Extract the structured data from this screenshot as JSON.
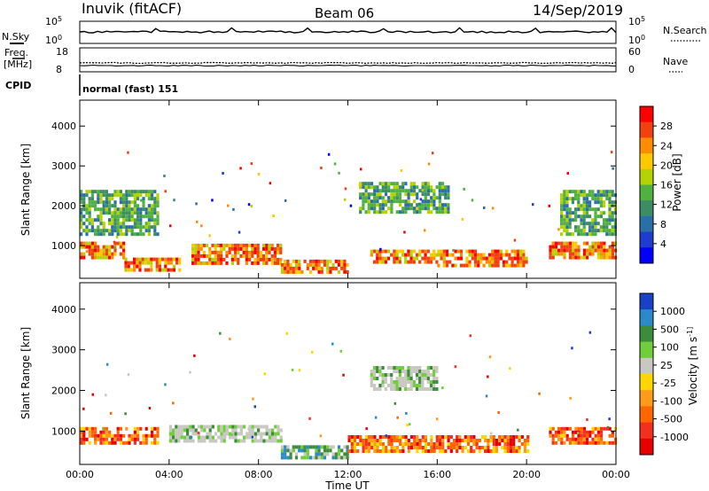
{
  "header": {
    "station": "Inuvik (fitACF)",
    "beam": "Beam 06",
    "date": "14/Sep/2019"
  },
  "strip_panels": {
    "nsky": {
      "label": "N.Sky",
      "ticks": [
        "10^5",
        "10^0"
      ],
      "right_label": "N.Search",
      "right_ticks": [
        "10^5",
        "10^0"
      ]
    },
    "freq": {
      "label_line1": "Freq.",
      "label_line2": "[MHz]",
      "ticks": [
        "18",
        "8"
      ],
      "right_label": "Nave",
      "right_ticks": [
        "60",
        "0"
      ]
    },
    "cpid": {
      "label": "CPID",
      "value": "normal (fast) 151"
    }
  },
  "chart_data": [
    {
      "type": "heatmap",
      "name": "power",
      "ylabel": "Slant Range [km]",
      "ylim": [
        180,
        4650
      ],
      "yticks": [
        1000,
        2000,
        3000,
        4000
      ],
      "x": [
        "00:00",
        "04:00",
        "08:00",
        "12:00",
        "16:00",
        "20:00",
        "00:00"
      ],
      "colorbar": {
        "label": "Power [dB]",
        "ticks": [
          "28",
          "24",
          "20",
          "16",
          "12",
          "8",
          "4"
        ],
        "colors": [
          "#ff0000",
          "#f34010",
          "#ff8c00",
          "#ffc800",
          "#b4d200",
          "#50b040",
          "#3c8c64",
          "#2a6fa5",
          "#1f3cd2",
          "#0000ff"
        ]
      },
      "echo_bands": [
        {
          "time_range": [
            "00:00",
            "02:00"
          ],
          "range_km": [
            700,
            1100
          ],
          "level": "high"
        },
        {
          "time_range": [
            "02:00",
            "04:30"
          ],
          "range_km": [
            350,
            700
          ],
          "level": "high"
        },
        {
          "time_range": [
            "05:00",
            "09:00"
          ],
          "range_km": [
            600,
            1050
          ],
          "level": "high"
        },
        {
          "time_range": [
            "09:00",
            "12:00"
          ],
          "range_km": [
            350,
            650
          ],
          "level": "high"
        },
        {
          "time_range": [
            "13:00",
            "16:00"
          ],
          "range_km": [
            600,
            900
          ],
          "level": "high"
        },
        {
          "time_range": [
            "16:00",
            "20:00"
          ],
          "range_km": [
            500,
            900
          ],
          "level": "high"
        },
        {
          "time_range": [
            "21:00",
            "23:59"
          ],
          "range_km": [
            700,
            1100
          ],
          "level": "high"
        },
        {
          "time_range": [
            "00:00",
            "03:30"
          ],
          "range_km": [
            1300,
            2400
          ],
          "level": "low"
        },
        {
          "time_range": [
            "12:30",
            "16:30"
          ],
          "range_km": [
            1800,
            2600
          ],
          "level": "low"
        },
        {
          "time_range": [
            "21:30",
            "23:59"
          ],
          "range_km": [
            1300,
            2400
          ],
          "level": "low"
        }
      ]
    },
    {
      "type": "heatmap",
      "name": "velocity",
      "ylabel": "Slant Range [km]",
      "xlabel": "Time UT",
      "ylim": [
        180,
        4650
      ],
      "yticks": [
        1000,
        2000,
        3000,
        4000
      ],
      "x": [
        "00:00",
        "04:00",
        "08:00",
        "12:00",
        "16:00",
        "20:00",
        "00:00"
      ],
      "colorbar": {
        "label": "Velocity [m s^-1]",
        "ticks": [
          "1000",
          "500",
          "100",
          "25",
          "-25",
          "-100",
          "-500",
          "-1000"
        ],
        "colors": [
          "#1a40c8",
          "#2a8acb",
          "#3c8c3c",
          "#6fce3a",
          "#c8c8c0",
          "#ffd700",
          "#ff9a1a",
          "#ff6600",
          "#f33020",
          "#e60000"
        ]
      },
      "echo_bands": [
        {
          "time_range": [
            "00:00",
            "03:30"
          ],
          "range_km": [
            700,
            1100
          ],
          "level": "away"
        },
        {
          "time_range": [
            "04:00",
            "09:00"
          ],
          "range_km": [
            800,
            1150
          ],
          "level": "ground"
        },
        {
          "time_range": [
            "09:00",
            "12:00"
          ],
          "range_km": [
            350,
            650
          ],
          "level": "toward"
        },
        {
          "time_range": [
            "12:00",
            "20:00"
          ],
          "range_km": [
            550,
            900
          ],
          "level": "away"
        },
        {
          "time_range": [
            "13:00",
            "16:00"
          ],
          "range_km": [
            2000,
            2600
          ],
          "level": "ground"
        },
        {
          "time_range": [
            "21:00",
            "23:59"
          ],
          "range_km": [
            700,
            1100
          ],
          "level": "away"
        }
      ]
    }
  ]
}
